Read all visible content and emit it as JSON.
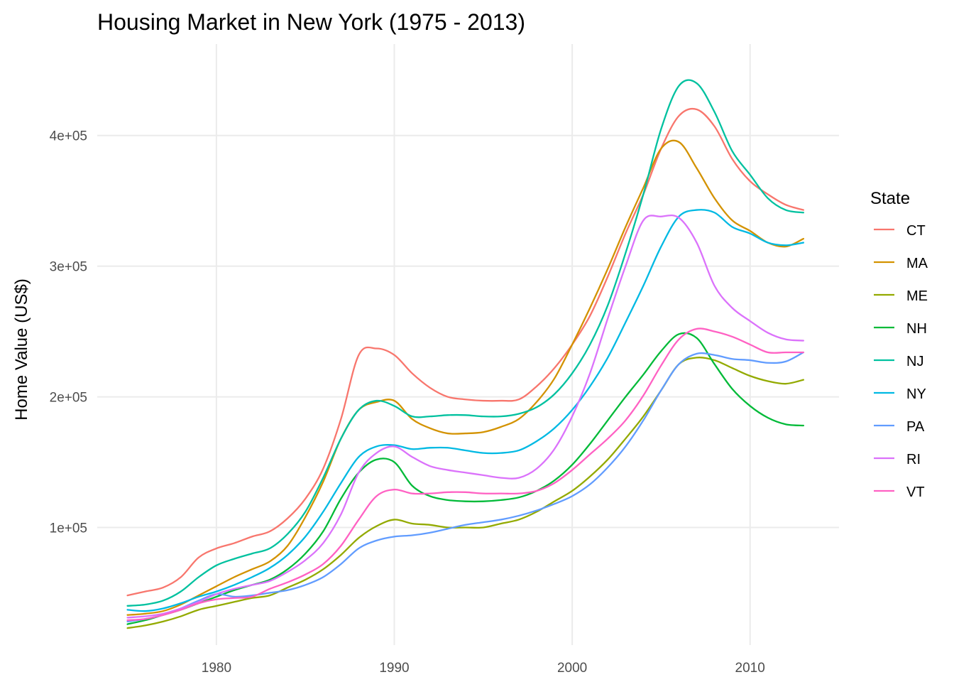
{
  "chart_data": {
    "type": "line",
    "title": "Housing Market in New York (1975 - 2013)",
    "xlabel": "",
    "ylabel": "Home Value (US$)",
    "xlim": [
      1973.3,
      2015
    ],
    "ylim": [
      10000,
      470000
    ],
    "x_ticks": [
      1980,
      1990,
      2000,
      2010
    ],
    "y_ticks": [
      100000,
      200000,
      300000,
      400000
    ],
    "y_tick_labels": [
      "1e+05",
      "2e+05",
      "3e+05",
      "4e+05"
    ],
    "grid": true,
    "legend": {
      "title": "State",
      "position": "right"
    },
    "series": [
      {
        "name": "CT",
        "color": "#F8766D",
        "x": [
          1975,
          1976,
          1977,
          1978,
          1979,
          1980,
          1981,
          1982,
          1983,
          1984,
          1985,
          1986,
          1987,
          1988,
          1989,
          1990,
          1991,
          1992,
          1993,
          1994,
          1995,
          1996,
          1997,
          1998,
          1999,
          2000,
          2001,
          2002,
          2003,
          2004,
          2005,
          2006,
          2007,
          2008,
          2009,
          2010,
          2011,
          2012,
          2013
        ],
        "y": [
          48000,
          51000,
          54000,
          62000,
          77000,
          84000,
          88000,
          93000,
          97000,
          107000,
          122000,
          145000,
          183000,
          232000,
          237000,
          232000,
          218000,
          207000,
          200000,
          198000,
          197000,
          197000,
          198000,
          208000,
          222000,
          240000,
          262000,
          292000,
          325000,
          355000,
          390000,
          415000,
          420000,
          407000,
          382000,
          365000,
          355000,
          347000,
          343000
        ]
      },
      {
        "name": "MA",
        "color": "#D39200",
        "x": [
          1975,
          1976,
          1977,
          1978,
          1979,
          1980,
          1981,
          1982,
          1983,
          1984,
          1985,
          1986,
          1987,
          1988,
          1989,
          1990,
          1991,
          1992,
          1993,
          1994,
          1995,
          1996,
          1997,
          1998,
          1999,
          2000,
          2001,
          2002,
          2003,
          2004,
          2005,
          2006,
          2007,
          2008,
          2009,
          2010,
          2011,
          2012,
          2013
        ],
        "y": [
          33000,
          34000,
          36000,
          41000,
          48000,
          55000,
          62000,
          68000,
          74000,
          86000,
          108000,
          135000,
          168000,
          190000,
          196000,
          197000,
          183000,
          176000,
          172000,
          172000,
          173000,
          177000,
          183000,
          196000,
          214000,
          240000,
          268000,
          298000,
          330000,
          360000,
          390000,
          395000,
          375000,
          352000,
          335000,
          327000,
          318000,
          315000,
          321000
        ]
      },
      {
        "name": "ME",
        "color": "#93AA00",
        "x": [
          1975,
          1976,
          1977,
          1978,
          1979,
          1980,
          1981,
          1982,
          1983,
          1984,
          1985,
          1986,
          1987,
          1988,
          1989,
          1990,
          1991,
          1992,
          1993,
          1994,
          1995,
          1996,
          1997,
          1998,
          1999,
          2000,
          2001,
          2002,
          2003,
          2004,
          2005,
          2006,
          2007,
          2008,
          2009,
          2010,
          2011,
          2012,
          2013
        ],
        "y": [
          23000,
          25000,
          28000,
          32000,
          37000,
          40000,
          43000,
          46000,
          48000,
          54000,
          60000,
          68000,
          79000,
          92000,
          101000,
          106000,
          103000,
          102000,
          100000,
          100000,
          100000,
          103000,
          106000,
          112000,
          120000,
          128000,
          139000,
          152000,
          168000,
          185000,
          205000,
          225000,
          230000,
          228000,
          222000,
          216000,
          212000,
          210000,
          213000
        ]
      },
      {
        "name": "NH",
        "color": "#00BA38",
        "x": [
          1975,
          1976,
          1977,
          1978,
          1979,
          1980,
          1981,
          1982,
          1983,
          1984,
          1985,
          1986,
          1987,
          1988,
          1989,
          1990,
          1991,
          1992,
          1993,
          1994,
          1995,
          1996,
          1997,
          1998,
          1999,
          2000,
          2001,
          2002,
          2003,
          2004,
          2005,
          2006,
          2007,
          2008,
          2009,
          2010,
          2011,
          2012,
          2013
        ],
        "y": [
          26000,
          29000,
          33000,
          37000,
          42000,
          47000,
          52000,
          56000,
          60000,
          68000,
          80000,
          97000,
          122000,
          142000,
          152000,
          150000,
          132000,
          124000,
          121000,
          120000,
          120000,
          121000,
          123000,
          128000,
          136000,
          148000,
          164000,
          182000,
          200000,
          217000,
          235000,
          248000,
          245000,
          225000,
          206000,
          193000,
          184000,
          179000,
          178000
        ]
      },
      {
        "name": "NJ",
        "color": "#00C19F",
        "x": [
          1975,
          1976,
          1977,
          1978,
          1979,
          1980,
          1981,
          1982,
          1983,
          1984,
          1985,
          1986,
          1987,
          1988,
          1989,
          1990,
          1991,
          1992,
          1993,
          1994,
          1995,
          1996,
          1997,
          1998,
          1999,
          2000,
          2001,
          2002,
          2003,
          2004,
          2005,
          2006,
          2007,
          2008,
          2009,
          2010,
          2011,
          2012,
          2013
        ],
        "y": [
          40000,
          41000,
          44000,
          51000,
          62000,
          71000,
          76000,
          80000,
          84000,
          95000,
          112000,
          138000,
          168000,
          190000,
          197000,
          193000,
          185000,
          185000,
          186000,
          186000,
          185000,
          185000,
          187000,
          192000,
          202000,
          218000,
          240000,
          270000,
          310000,
          355000,
          405000,
          438000,
          440000,
          418000,
          388000,
          370000,
          352000,
          343000,
          341000
        ]
      },
      {
        "name": "NY",
        "color": "#00B9E3",
        "x": [
          1975,
          1976,
          1977,
          1978,
          1979,
          1980,
          1981,
          1982,
          1983,
          1984,
          1985,
          1986,
          1987,
          1988,
          1989,
          1990,
          1991,
          1992,
          1993,
          1994,
          1995,
          1996,
          1997,
          1998,
          1999,
          2000,
          2001,
          2002,
          2003,
          2004,
          2005,
          2006,
          2007,
          2008,
          2009,
          2010,
          2011,
          2012,
          2013
        ],
        "y": [
          37000,
          36000,
          38000,
          42000,
          47000,
          51000,
          56000,
          62000,
          69000,
          79000,
          93000,
          112000,
          134000,
          154000,
          162000,
          163000,
          160000,
          161000,
          161000,
          159000,
          157000,
          157000,
          159000,
          166000,
          176000,
          190000,
          208000,
          230000,
          257000,
          285000,
          315000,
          338000,
          343000,
          341000,
          330000,
          325000,
          318000,
          316000,
          318000
        ]
      },
      {
        "name": "PA",
        "color": "#619CFF",
        "x": [
          1975,
          1976,
          1977,
          1978,
          1979,
          1980,
          1981,
          1982,
          1983,
          1984,
          1985,
          1986,
          1987,
          1988,
          1989,
          1990,
          1991,
          1992,
          1993,
          1994,
          1995,
          1996,
          1997,
          1998,
          1999,
          2000,
          2001,
          2002,
          2003,
          2004,
          2005,
          2006,
          2007,
          2008,
          2009,
          2010,
          2011,
          2012,
          2013
        ],
        "y": [
          28000,
          30000,
          33000,
          38000,
          44000,
          49000,
          47000,
          48000,
          50000,
          52000,
          56000,
          62000,
          72000,
          84000,
          90000,
          93000,
          94000,
          96000,
          99000,
          102000,
          104000,
          106000,
          109000,
          113000,
          118000,
          124000,
          133000,
          146000,
          162000,
          182000,
          205000,
          225000,
          233000,
          232000,
          229000,
          228000,
          226000,
          227000,
          234000
        ]
      },
      {
        "name": "RI",
        "color": "#DB72FB",
        "x": [
          1975,
          1976,
          1977,
          1978,
          1979,
          1980,
          1981,
          1982,
          1983,
          1984,
          1985,
          1986,
          1987,
          1988,
          1989,
          1990,
          1991,
          1992,
          1993,
          1994,
          1995,
          1996,
          1997,
          1998,
          1999,
          2000,
          2001,
          2002,
          2003,
          2004,
          2005,
          2006,
          2007,
          2008,
          2009,
          2010,
          2011,
          2012,
          2013
        ],
        "y": [
          31000,
          32000,
          34000,
          38000,
          43000,
          49000,
          53000,
          56000,
          59000,
          66000,
          75000,
          88000,
          110000,
          142000,
          157000,
          162000,
          154000,
          147000,
          144000,
          142000,
          140000,
          138000,
          138000,
          145000,
          160000,
          185000,
          218000,
          260000,
          300000,
          335000,
          338000,
          337000,
          318000,
          285000,
          268000,
          258000,
          249000,
          244000,
          243000
        ]
      },
      {
        "name": "VT",
        "color": "#FF61C3",
        "x": [
          1975,
          1976,
          1977,
          1978,
          1979,
          1980,
          1981,
          1982,
          1983,
          1984,
          1985,
          1986,
          1987,
          1988,
          1989,
          1990,
          1991,
          1992,
          1993,
          1994,
          1995,
          1996,
          1997,
          1998,
          1999,
          2000,
          2001,
          2002,
          2003,
          2004,
          2005,
          2006,
          2007,
          2008,
          2009,
          2010,
          2011,
          2012,
          2013
        ],
        "y": [
          29000,
          30000,
          33000,
          37000,
          42000,
          45000,
          46000,
          47000,
          53000,
          58000,
          64000,
          72000,
          86000,
          106000,
          124000,
          129000,
          126000,
          126000,
          127000,
          127000,
          126000,
          126000,
          126000,
          128000,
          134000,
          144000,
          156000,
          168000,
          182000,
          201000,
          224000,
          244000,
          252000,
          250000,
          246000,
          240000,
          234000,
          234000,
          234000
        ]
      }
    ]
  }
}
